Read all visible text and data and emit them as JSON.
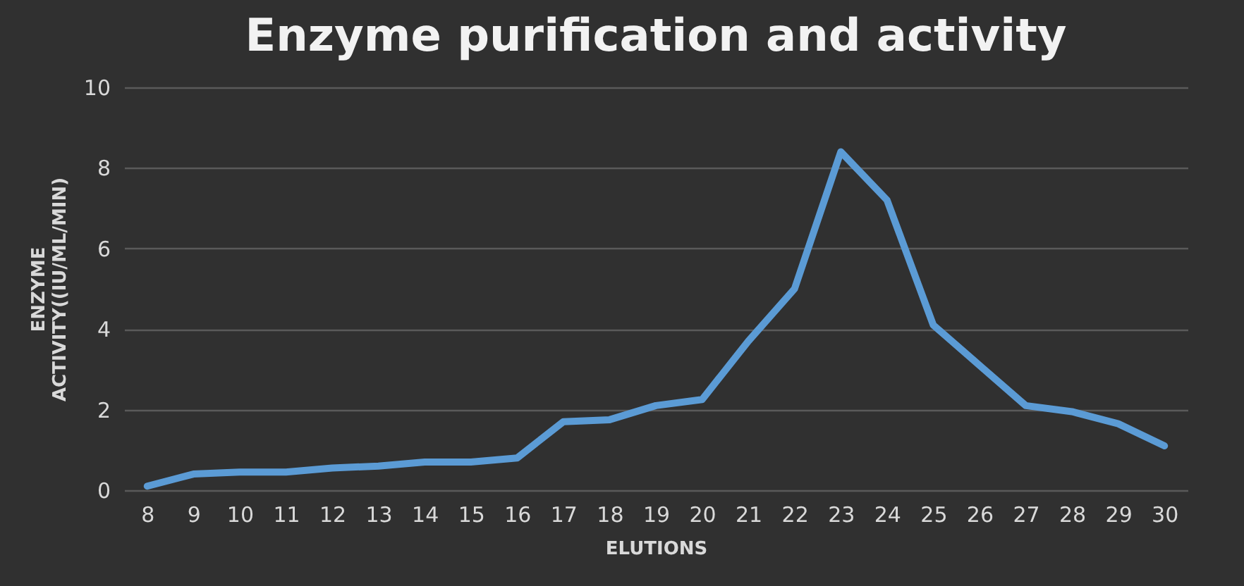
{
  "chart_data": {
    "type": "line",
    "title": "Enzyme purification and activity",
    "xlabel": "ELUTIONS",
    "ylabel": [
      "ENZYME",
      "ACTIVITY((IU/ML/MIN)"
    ],
    "categories": [
      "8",
      "9",
      "10",
      "11",
      "12",
      "13",
      "14",
      "15",
      "16",
      "17",
      "18",
      "19",
      "20",
      "21",
      "22",
      "23",
      "24",
      "25",
      "26",
      "27",
      "28",
      "29",
      "30"
    ],
    "series": [
      {
        "color": "#5b9bd5",
        "values": [
          0.1,
          0.4,
          0.45,
          0.45,
          0.55,
          0.6,
          0.7,
          0.7,
          0.8,
          1.7,
          1.75,
          2.1,
          2.25,
          3.7,
          5.0,
          8.4,
          7.2,
          4.1,
          3.1,
          2.1,
          1.95,
          1.65,
          1.1
        ]
      }
    ],
    "ylim": [
      0,
      10
    ],
    "yticks": [
      0,
      2,
      4,
      6,
      8,
      10
    ],
    "grid": "y",
    "marker": "none",
    "line_style": "solid"
  }
}
